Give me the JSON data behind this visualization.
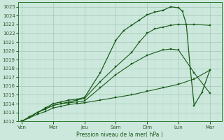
{
  "xlabel": "Pression niveau de la mer( hPa )",
  "bg_color": "#cce8dd",
  "grid_major_color": "#aaccbb",
  "grid_minor_color": "#bbddcc",
  "line_color": "#1a5c1a",
  "x_labels": [
    "Ven",
    "Mer",
    "Jeu",
    "Sam",
    "Dim",
    "Lun",
    "Mar"
  ],
  "x_positions": [
    0,
    4,
    8,
    12,
    16,
    20,
    24
  ],
  "xlim": [
    -0.5,
    25.5
  ],
  "ylim": [
    1012,
    1025.5
  ],
  "yticks": [
    1012,
    1013,
    1014,
    1015,
    1016,
    1017,
    1018,
    1019,
    1020,
    1021,
    1022,
    1023,
    1024,
    1025
  ],
  "series": [
    {
      "x": [
        0,
        1,
        2,
        3,
        4,
        5,
        6,
        7,
        8,
        10,
        12,
        14,
        16,
        18,
        20,
        22,
        24
      ],
      "y": [
        1012.0,
        1012.4,
        1012.8,
        1013.1,
        1013.5,
        1013.7,
        1013.9,
        1014.0,
        1014.1,
        1014.4,
        1014.7,
        1015.0,
        1015.4,
        1015.8,
        1016.2,
        1016.8,
        1017.8
      ],
      "lw": 0.8,
      "marker": "s",
      "ms": 1.5
    },
    {
      "x": [
        0,
        1,
        2,
        3,
        4,
        5,
        6,
        7,
        8,
        10,
        12,
        14,
        16,
        18,
        19,
        20,
        22,
        24
      ],
      "y": [
        1012.0,
        1012.5,
        1013.0,
        1013.4,
        1013.8,
        1014.0,
        1014.1,
        1014.2,
        1014.3,
        1015.8,
        1017.3,
        1018.5,
        1019.5,
        1020.1,
        1020.2,
        1020.1,
        1017.5,
        1015.2
      ],
      "lw": 0.8,
      "marker": "s",
      "ms": 1.5
    },
    {
      "x": [
        0,
        1,
        2,
        3,
        4,
        5,
        6,
        7,
        8,
        10,
        12,
        14,
        15,
        16,
        17,
        18,
        19,
        20,
        22,
        24
      ],
      "y": [
        1012.0,
        1012.5,
        1013.0,
        1013.4,
        1013.8,
        1014.0,
        1014.2,
        1014.4,
        1014.6,
        1016.5,
        1018.2,
        1019.8,
        1021.0,
        1022.0,
        1022.5,
        1022.7,
        1022.9,
        1023.0,
        1023.0,
        1022.9
      ],
      "lw": 0.8,
      "marker": "s",
      "ms": 1.5
    },
    {
      "x": [
        0,
        1,
        2,
        3,
        4,
        5,
        6,
        7,
        8,
        10,
        12,
        13,
        14,
        15,
        16,
        17,
        18,
        19,
        20,
        20.5,
        21,
        21.5,
        22,
        23,
        24
      ],
      "y": [
        1012.0,
        1012.5,
        1013.0,
        1013.5,
        1014.0,
        1014.2,
        1014.4,
        1014.5,
        1014.7,
        1017.5,
        1021.2,
        1022.3,
        1022.9,
        1023.5,
        1024.1,
        1024.4,
        1024.6,
        1025.0,
        1024.9,
        1024.5,
        1023.0,
        1018.0,
        1013.8,
        1015.3,
        1017.8
      ],
      "lw": 0.9,
      "marker": "s",
      "ms": 1.8
    }
  ]
}
